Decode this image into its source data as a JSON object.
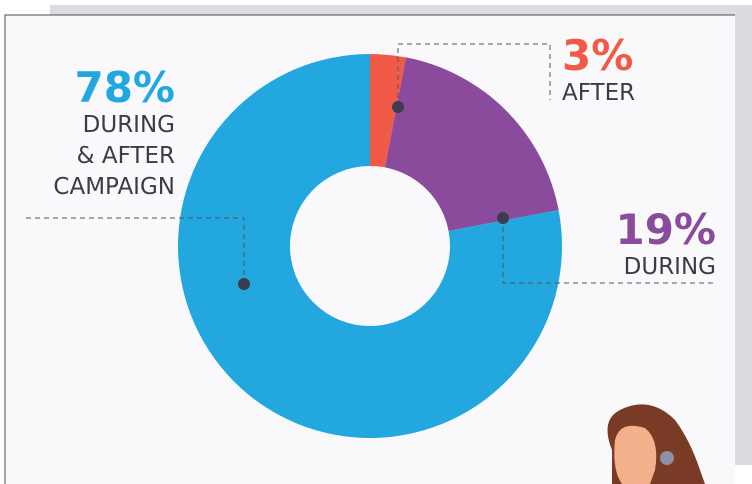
{
  "chart_data": {
    "type": "donut",
    "categories": [
      "AFTER",
      "DURING",
      "DURING\n& AFTER\nCAMPAIGN"
    ],
    "values": [
      3,
      19,
      78
    ],
    "value_labels": [
      "3%",
      "19%",
      "78%"
    ],
    "colors": [
      "#f05a46",
      "#8a4b9d",
      "#22a8de"
    ]
  }
}
